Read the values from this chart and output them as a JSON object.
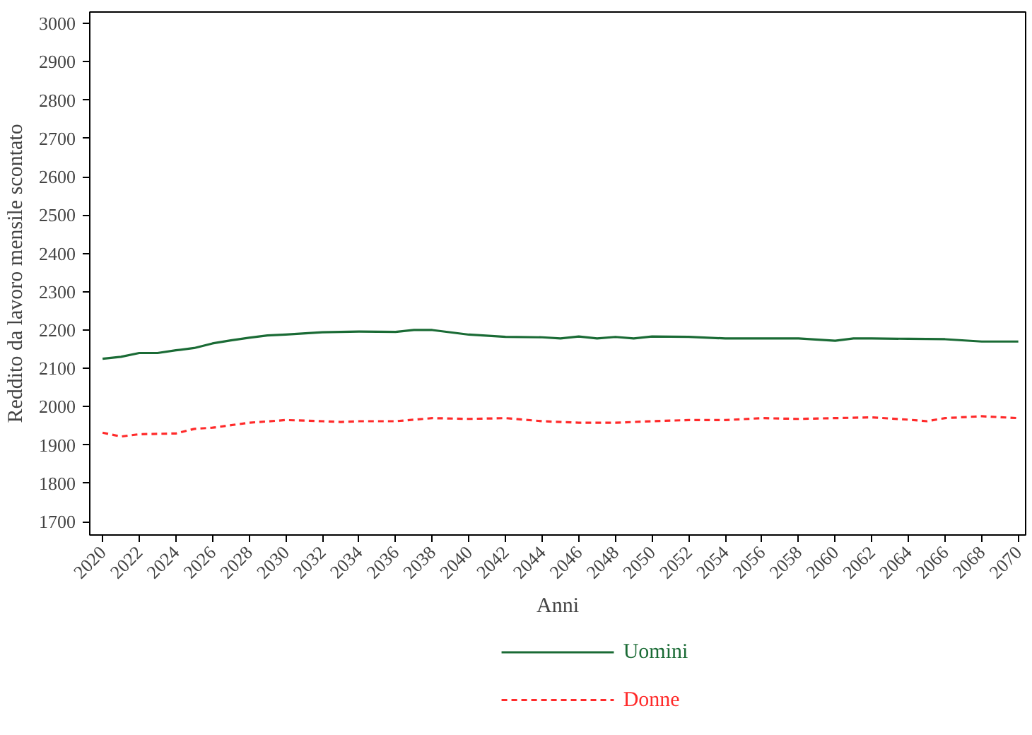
{
  "chart_data": {
    "type": "line",
    "xlabel": "Anni",
    "ylabel": "Reddito da lavoro mensile scontato",
    "xlim": [
      2019.3,
      2070.4
    ],
    "ylim": [
      1665,
      3030
    ],
    "xticks": [
      2020,
      2022,
      2024,
      2026,
      2028,
      2030,
      2032,
      2034,
      2036,
      2038,
      2040,
      2042,
      2044,
      2046,
      2048,
      2050,
      2052,
      2054,
      2056,
      2058,
      2060,
      2062,
      2064,
      2066,
      2068,
      2070
    ],
    "yticks": [
      1700,
      1800,
      1900,
      2000,
      2100,
      2200,
      2300,
      2400,
      2500,
      2600,
      2700,
      2800,
      2900,
      3000
    ],
    "grid": false,
    "legend": "bottom",
    "series": [
      {
        "name": "Uomini",
        "color": "#1a6b35",
        "line_style": "solid",
        "x": [
          2020,
          2021,
          2022,
          2023,
          2024,
          2025,
          2026,
          2027,
          2028,
          2029,
          2030,
          2032,
          2034,
          2036,
          2037,
          2038,
          2040,
          2042,
          2044,
          2045,
          2046,
          2047,
          2048,
          2049,
          2050,
          2052,
          2054,
          2056,
          2058,
          2060,
          2061,
          2062,
          2064,
          2066,
          2068,
          2070
        ],
        "values": [
          2125,
          2130,
          2140,
          2140,
          2147,
          2153,
          2165,
          2173,
          2180,
          2186,
          2188,
          2194,
          2196,
          2195,
          2200,
          2200,
          2188,
          2182,
          2181,
          2178,
          2183,
          2178,
          2182,
          2178,
          2183,
          2182,
          2178,
          2178,
          2178,
          2172,
          2178,
          2178,
          2177,
          2176,
          2170,
          2170
        ]
      },
      {
        "name": "Donne",
        "color": "#ff2a2a",
        "line_style": "dashed",
        "x": [
          2020,
          2021,
          2022,
          2024,
          2025,
          2026,
          2028,
          2030,
          2032,
          2033,
          2034,
          2036,
          2038,
          2040,
          2042,
          2044,
          2046,
          2048,
          2050,
          2052,
          2054,
          2056,
          2058,
          2060,
          2062,
          2064,
          2065,
          2066,
          2068,
          2070
        ],
        "values": [
          1932,
          1922,
          1928,
          1930,
          1942,
          1945,
          1958,
          1965,
          1962,
          1960,
          1962,
          1962,
          1970,
          1968,
          1970,
          1962,
          1958,
          1958,
          1962,
          1965,
          1965,
          1970,
          1968,
          1970,
          1972,
          1966,
          1962,
          1970,
          1975,
          1970
        ]
      }
    ]
  }
}
